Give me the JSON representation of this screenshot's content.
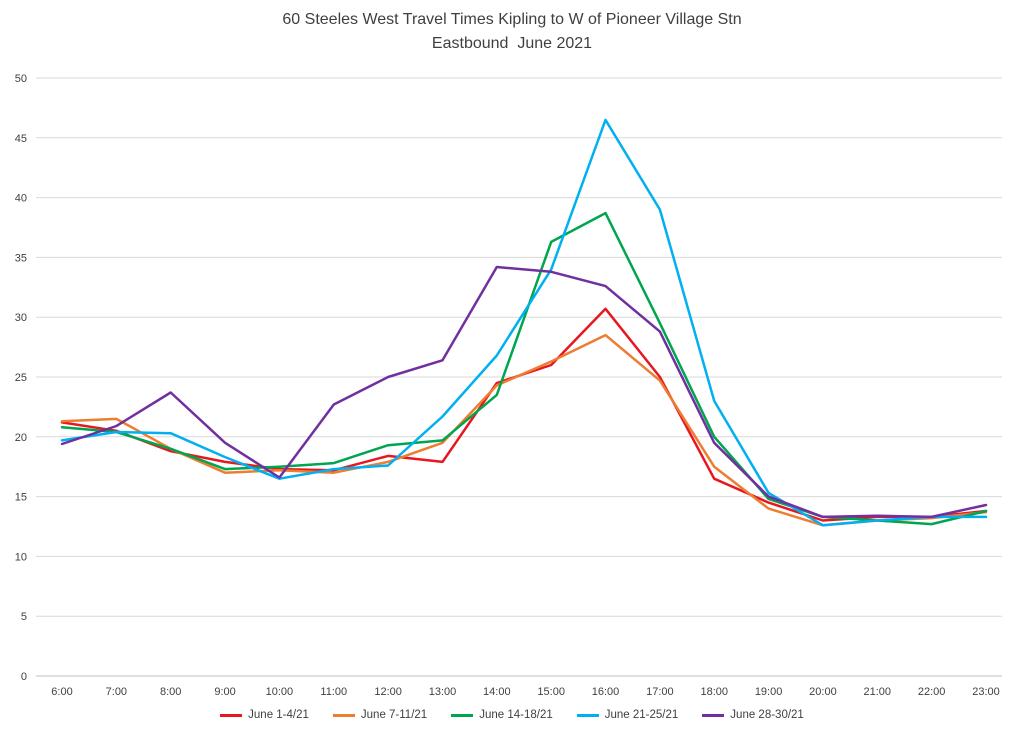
{
  "chart_data": {
    "type": "line",
    "title": "60 Steeles West Travel Times Kipling to W of Pioneer Village Stn",
    "subtitle": "Eastbound  June 2021",
    "x": [
      "6:00",
      "7:00",
      "8:00",
      "9:00",
      "10:00",
      "11:00",
      "12:00",
      "13:00",
      "14:00",
      "15:00",
      "16:00",
      "17:00",
      "18:00",
      "19:00",
      "20:00",
      "21:00",
      "22:00",
      "23:00"
    ],
    "xlabel": "",
    "ylabel": "",
    "ylim": [
      0,
      50
    ],
    "ytick_step": 5,
    "yticks": [
      0,
      5,
      10,
      15,
      20,
      25,
      30,
      35,
      40,
      45,
      50
    ],
    "grid": true,
    "legend_position": "bottom",
    "series": [
      {
        "name": "June 1-4/21",
        "color": "#e8171f",
        "values": [
          21.2,
          20.5,
          18.8,
          17.9,
          17.3,
          17.2,
          18.4,
          17.9,
          24.5,
          26.0,
          30.7,
          25.0,
          16.5,
          14.5,
          13.0,
          13.3,
          13.3,
          13.8
        ]
      },
      {
        "name": "June 7-11/21",
        "color": "#ed7d31",
        "values": [
          21.3,
          21.5,
          19.0,
          17.0,
          17.2,
          17.0,
          17.9,
          19.5,
          24.3,
          26.3,
          28.5,
          24.7,
          17.5,
          14.0,
          12.6,
          13.0,
          13.2,
          13.7
        ]
      },
      {
        "name": "June 14-18/21",
        "color": "#00a550",
        "values": [
          20.8,
          20.4,
          19.0,
          17.3,
          17.5,
          17.8,
          19.3,
          19.7,
          23.5,
          36.3,
          38.7,
          29.5,
          20.0,
          14.8,
          13.3,
          13.0,
          12.7,
          13.8
        ]
      },
      {
        "name": "June 21-25/21",
        "color": "#00b0f0",
        "values": [
          19.7,
          20.4,
          20.3,
          18.3,
          16.5,
          17.3,
          17.6,
          21.7,
          26.8,
          34.0,
          46.5,
          39.0,
          23.0,
          15.3,
          12.6,
          13.0,
          13.3,
          13.3
        ]
      },
      {
        "name": "June 28-30/21",
        "color": "#7030a0",
        "values": [
          19.4,
          20.9,
          23.7,
          19.5,
          16.6,
          22.7,
          25.0,
          26.4,
          34.2,
          33.8,
          32.6,
          28.8,
          19.5,
          15.0,
          13.3,
          13.4,
          13.3,
          14.3
        ]
      }
    ],
    "colors": {
      "gridline": "#d9d9d9",
      "axis_line": "#bfbfbf",
      "axis_text": "#404040",
      "title_text": "#3f3f3f"
    }
  }
}
